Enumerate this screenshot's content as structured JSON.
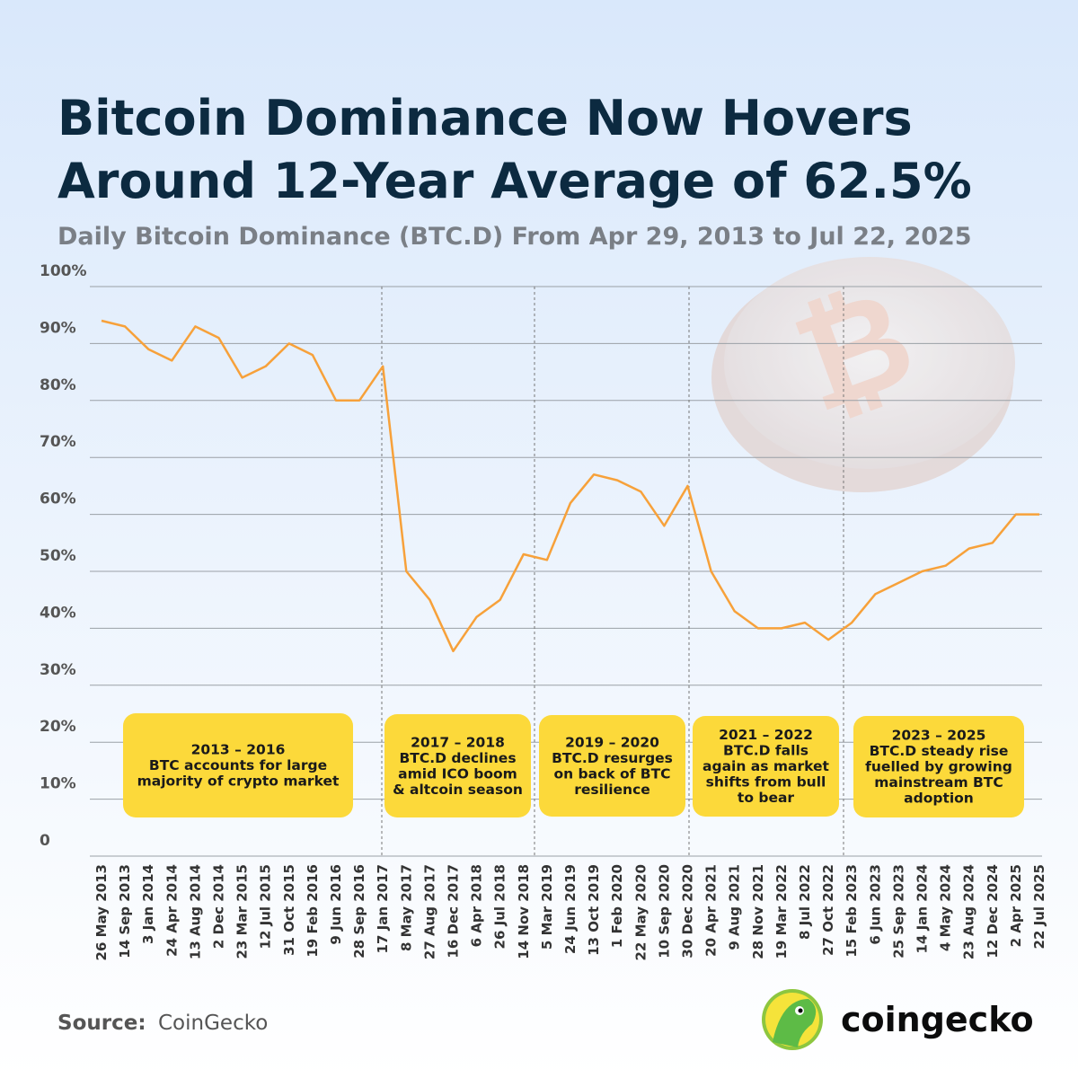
{
  "chart_data": {
    "type": "line",
    "title_lines": [
      "Bitcoin Dominance Now Hovers",
      "Around 12-Year Average of 62.5%"
    ],
    "subtitle": "Daily Bitcoin Dominance (BTC.D) From Apr 29, 2013 to Jul 22, 2025",
    "categories": [
      "26 May 2013",
      "14 Sep 2013",
      "3 Jan 2014",
      "24 Apr 2014",
      "13 Aug 2014",
      "2 Dec 2014",
      "23 Mar 2015",
      "12 Jul 2015",
      "31 Oct 2015",
      "19 Feb 2016",
      "9 Jun 2016",
      "28 Sep 2016",
      "17 Jan 2017",
      "8 May 2017",
      "27 Aug 2017",
      "16 Dec 2017",
      "6 Apr 2018",
      "26 Jul 2018",
      "14 Nov 2018",
      "5 Mar 2019",
      "24 Jun 2019",
      "13 Oct 2019",
      "1 Feb 2020",
      "22 May 2020",
      "10 Sep 2020",
      "30 Dec 2020",
      "20 Apr 2021",
      "9 Aug 2021",
      "28 Nov 2021",
      "19 Mar 2022",
      "8 Jul 2022",
      "27 Oct 2022",
      "15 Feb 2023",
      "6 Jun 2023",
      "25 Sep 2023",
      "14 Jan 2024",
      "4 May 2024",
      "23 Aug 2024",
      "12 Dec 2024",
      "2 Apr 2025",
      "22 Jul 2025"
    ],
    "series": [
      {
        "name": "BTC.D",
        "color": "#f7a13a",
        "values": [
          94,
          93,
          89,
          87,
          93,
          91,
          84,
          86,
          90,
          88,
          80,
          80,
          86,
          50,
          45,
          36,
          42,
          45,
          53,
          52,
          62,
          67,
          66,
          64,
          58,
          65,
          50,
          43,
          40,
          40,
          41,
          38,
          41,
          46,
          48,
          50,
          51,
          54,
          55,
          60,
          60
        ]
      }
    ],
    "ylim": [
      0,
      100
    ],
    "yticks": [
      0,
      {
        "value": 10,
        "label": "10%"
      },
      {
        "value": 20,
        "label": "20%"
      },
      {
        "value": 30,
        "label": "30%"
      },
      {
        "value": 40,
        "label": "40%"
      },
      {
        "value": 50,
        "label": "50%"
      },
      {
        "value": 60,
        "label": "60%"
      },
      {
        "value": 70,
        "label": "70%"
      },
      {
        "value": 80,
        "label": "80%"
      },
      {
        "value": 90,
        "label": "90%"
      },
      {
        "value": 100,
        "label": "100%"
      }
    ],
    "grid": true,
    "annotations": [
      {
        "lines": [
          "2013 – 2016",
          "BTC accounts for large",
          "majority of crypto market"
        ]
      },
      {
        "lines": [
          "2017 – 2018",
          "BTC.D declines",
          "amid ICO boom",
          "& altcoin season"
        ]
      },
      {
        "lines": [
          "2019 – 2020",
          "BTC.D resurges",
          "on back of BTC",
          "resilience"
        ]
      },
      {
        "lines": [
          "2021 – 2022",
          "BTC.D falls",
          "again as market",
          "shifts from bull",
          "to bear"
        ]
      },
      {
        "lines": [
          "2023 – 2025",
          "BTC.D steady rise",
          "fuelled by growing",
          "mainstream BTC",
          "adoption"
        ]
      }
    ]
  },
  "footer": {
    "source_label": "Source:",
    "source": "CoinGecko",
    "logo": "coingecko"
  }
}
